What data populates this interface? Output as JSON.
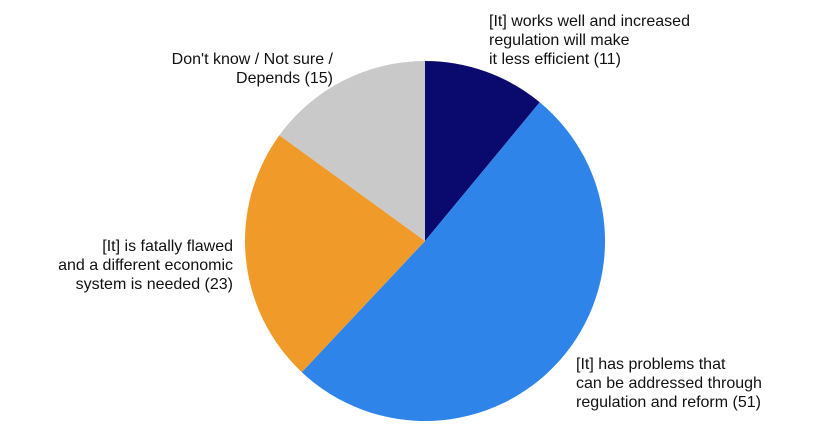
{
  "chart_data": {
    "type": "pie",
    "title": "",
    "slices": [
      {
        "value": 11,
        "color": "#0a0a6e",
        "label_lines": [
          "[It] works well and increased",
          "regulation will make",
          "it less efficient (11)"
        ]
      },
      {
        "value": 51,
        "color": "#2f84ea",
        "label_lines": [
          "[It] has problems that",
          "can be addressed through",
          "regulation and reform (51)"
        ]
      },
      {
        "value": 23,
        "color": "#f09a2a",
        "label_lines": [
          "[It] is fatally flawed",
          "and a different economic",
          "system is needed (23)"
        ]
      },
      {
        "value": 15,
        "color": "#c9c9c9",
        "label_lines": [
          "Don't know / Not sure /",
          "Depends (15)"
        ]
      }
    ]
  }
}
